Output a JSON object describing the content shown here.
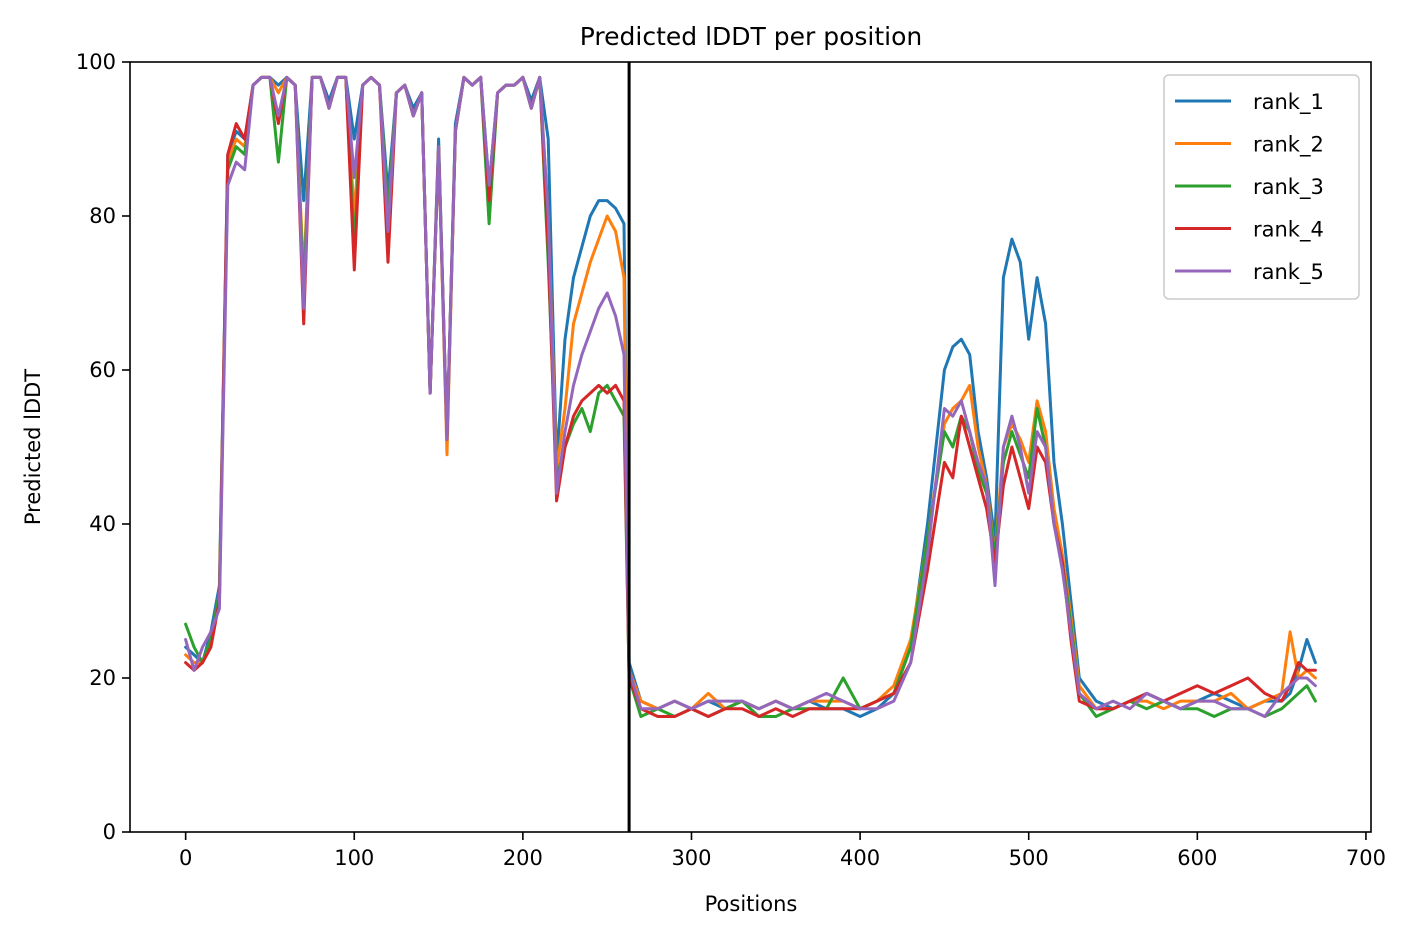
{
  "chart_data": {
    "type": "line",
    "title": "Predicted lDDT per position",
    "xlabel": "Positions",
    "ylabel": "Predicted lDDT",
    "xlim": [
      -33,
      703
    ],
    "ylim": [
      0,
      100
    ],
    "xticks": [
      0,
      100,
      200,
      300,
      400,
      500,
      600,
      700
    ],
    "yticks": [
      0,
      20,
      40,
      60,
      80,
      100
    ],
    "grid": false,
    "legend": "top-right",
    "vertical_line": {
      "x": 263,
      "color": "#000000"
    },
    "series": [
      {
        "name": "rank_1",
        "color": "#1f77b4",
        "x": [
          0,
          5,
          10,
          15,
          20,
          25,
          30,
          35,
          40,
          45,
          50,
          55,
          60,
          65,
          70,
          75,
          80,
          85,
          90,
          95,
          100,
          105,
          110,
          115,
          120,
          125,
          130,
          135,
          140,
          145,
          150,
          155,
          160,
          165,
          170,
          175,
          180,
          185,
          190,
          195,
          200,
          205,
          210,
          215,
          220,
          225,
          230,
          235,
          240,
          245,
          250,
          255,
          260,
          263,
          270,
          280,
          290,
          300,
          310,
          320,
          330,
          340,
          350,
          360,
          370,
          380,
          390,
          400,
          410,
          420,
          430,
          440,
          450,
          455,
          460,
          465,
          470,
          475,
          480,
          485,
          490,
          495,
          500,
          505,
          510,
          515,
          520,
          525,
          530,
          540,
          550,
          560,
          570,
          580,
          590,
          600,
          610,
          620,
          630,
          640,
          650,
          655,
          660,
          665,
          670
        ],
        "values": [
          24,
          23,
          22,
          26,
          32,
          88,
          91,
          90,
          97,
          98,
          98,
          97,
          98,
          97,
          82,
          98,
          98,
          95,
          98,
          98,
          90,
          97,
          98,
          97,
          83,
          96,
          97,
          94,
          96,
          57,
          90,
          51,
          92,
          98,
          97,
          98,
          84,
          96,
          97,
          97,
          98,
          95,
          98,
          90,
          48,
          64,
          72,
          76,
          80,
          82,
          82,
          81,
          79,
          22,
          17,
          16,
          17,
          16,
          17,
          16,
          17,
          16,
          17,
          16,
          17,
          16,
          16,
          15,
          16,
          18,
          24,
          40,
          60,
          63,
          64,
          62,
          52,
          46,
          38,
          72,
          77,
          74,
          64,
          72,
          66,
          48,
          40,
          30,
          20,
          17,
          16,
          17,
          18,
          17,
          16,
          17,
          18,
          17,
          16,
          17,
          17,
          18,
          21,
          25,
          22
        ]
      },
      {
        "name": "rank_2",
        "color": "#ff7f0e",
        "x": [
          0,
          5,
          10,
          15,
          20,
          25,
          30,
          35,
          40,
          45,
          50,
          55,
          60,
          65,
          70,
          75,
          80,
          85,
          90,
          95,
          100,
          105,
          110,
          115,
          120,
          125,
          130,
          135,
          140,
          145,
          150,
          155,
          160,
          165,
          170,
          175,
          180,
          185,
          190,
          195,
          200,
          205,
          210,
          215,
          220,
          225,
          230,
          235,
          240,
          245,
          250,
          255,
          260,
          263,
          270,
          280,
          290,
          300,
          310,
          320,
          330,
          340,
          350,
          360,
          370,
          380,
          390,
          400,
          410,
          420,
          430,
          440,
          450,
          455,
          460,
          465,
          470,
          475,
          480,
          485,
          490,
          495,
          500,
          505,
          510,
          515,
          520,
          525,
          530,
          540,
          550,
          560,
          570,
          580,
          590,
          600,
          610,
          620,
          630,
          640,
          650,
          655,
          660,
          665,
          670
        ],
        "values": [
          23,
          22,
          22,
          25,
          31,
          87,
          90,
          89,
          97,
          98,
          98,
          96,
          98,
          97,
          72,
          98,
          98,
          94,
          98,
          98,
          80,
          97,
          98,
          97,
          80,
          96,
          97,
          93,
          96,
          57,
          89,
          49,
          91,
          98,
          97,
          98,
          82,
          96,
          97,
          97,
          98,
          94,
          98,
          80,
          47,
          55,
          66,
          70,
          74,
          77,
          80,
          78,
          72,
          21,
          17,
          16,
          17,
          16,
          18,
          16,
          17,
          16,
          17,
          16,
          17,
          17,
          17,
          16,
          17,
          19,
          25,
          38,
          53,
          55,
          56,
          58,
          50,
          45,
          36,
          50,
          53,
          51,
          48,
          56,
          52,
          42,
          36,
          28,
          19,
          16,
          16,
          17,
          17,
          16,
          17,
          17,
          17,
          18,
          16,
          17,
          18,
          26,
          20,
          21,
          20
        ]
      },
      {
        "name": "rank_3",
        "color": "#2ca02c",
        "x": [
          0,
          5,
          10,
          15,
          20,
          25,
          30,
          35,
          40,
          45,
          50,
          55,
          60,
          65,
          70,
          75,
          80,
          85,
          90,
          95,
          100,
          105,
          110,
          115,
          120,
          125,
          130,
          135,
          140,
          145,
          150,
          155,
          160,
          165,
          170,
          175,
          180,
          185,
          190,
          195,
          200,
          205,
          210,
          215,
          220,
          225,
          230,
          235,
          240,
          245,
          250,
          255,
          260,
          263,
          270,
          280,
          290,
          300,
          310,
          320,
          330,
          340,
          350,
          360,
          370,
          380,
          390,
          400,
          410,
          420,
          430,
          440,
          450,
          455,
          460,
          465,
          470,
          475,
          480,
          485,
          490,
          495,
          500,
          505,
          510,
          515,
          520,
          525,
          530,
          540,
          550,
          560,
          570,
          580,
          590,
          600,
          610,
          620,
          630,
          640,
          650,
          655,
          660,
          665,
          670
        ],
        "values": [
          27,
          24,
          22,
          25,
          31,
          86,
          89,
          88,
          97,
          98,
          98,
          87,
          98,
          97,
          70,
          98,
          98,
          94,
          98,
          98,
          76,
          97,
          98,
          97,
          80,
          96,
          97,
          93,
          96,
          57,
          89,
          51,
          91,
          98,
          97,
          98,
          79,
          96,
          97,
          97,
          98,
          94,
          98,
          74,
          46,
          50,
          53,
          55,
          52,
          57,
          58,
          56,
          54,
          20,
          15,
          16,
          15,
          16,
          15,
          16,
          17,
          15,
          15,
          16,
          16,
          16,
          20,
          16,
          17,
          18,
          24,
          38,
          52,
          50,
          54,
          52,
          47,
          44,
          36,
          48,
          52,
          49,
          46,
          55,
          50,
          40,
          35,
          27,
          18,
          15,
          16,
          17,
          16,
          17,
          16,
          16,
          15,
          16,
          16,
          15,
          16,
          17,
          18,
          19,
          17
        ]
      },
      {
        "name": "rank_4",
        "color": "#d62728",
        "x": [
          0,
          5,
          10,
          15,
          20,
          25,
          30,
          35,
          40,
          45,
          50,
          55,
          60,
          65,
          70,
          75,
          80,
          85,
          90,
          95,
          100,
          105,
          110,
          115,
          120,
          125,
          130,
          135,
          140,
          145,
          150,
          155,
          160,
          165,
          170,
          175,
          180,
          185,
          190,
          195,
          200,
          205,
          210,
          215,
          220,
          225,
          230,
          235,
          240,
          245,
          250,
          255,
          260,
          263,
          270,
          280,
          290,
          300,
          310,
          320,
          330,
          340,
          350,
          360,
          370,
          380,
          390,
          400,
          410,
          420,
          430,
          440,
          450,
          455,
          460,
          465,
          470,
          475,
          480,
          485,
          490,
          495,
          500,
          505,
          510,
          515,
          520,
          525,
          530,
          540,
          550,
          560,
          570,
          580,
          590,
          600,
          610,
          620,
          630,
          640,
          650,
          655,
          660,
          665,
          670
        ],
        "values": [
          22,
          21,
          22,
          24,
          30,
          88,
          92,
          90,
          97,
          98,
          98,
          92,
          98,
          97,
          66,
          98,
          98,
          94,
          98,
          98,
          73,
          97,
          98,
          97,
          74,
          96,
          97,
          93,
          96,
          57,
          89,
          51,
          91,
          98,
          97,
          98,
          82,
          96,
          97,
          97,
          98,
          94,
          98,
          76,
          43,
          50,
          54,
          56,
          57,
          58,
          57,
          58,
          56,
          20,
          16,
          15,
          15,
          16,
          15,
          16,
          16,
          15,
          16,
          15,
          16,
          16,
          16,
          16,
          17,
          18,
          22,
          34,
          48,
          46,
          54,
          50,
          46,
          42,
          35,
          45,
          50,
          46,
          42,
          50,
          48,
          40,
          35,
          25,
          17,
          16,
          16,
          17,
          18,
          17,
          18,
          19,
          18,
          19,
          20,
          18,
          17,
          19,
          22,
          21,
          21
        ]
      },
      {
        "name": "rank_5",
        "color": "#9467bd",
        "x": [
          0,
          5,
          10,
          15,
          20,
          25,
          30,
          35,
          40,
          45,
          50,
          55,
          60,
          65,
          70,
          75,
          80,
          85,
          90,
          95,
          100,
          105,
          110,
          115,
          120,
          125,
          130,
          135,
          140,
          145,
          150,
          155,
          160,
          165,
          170,
          175,
          180,
          185,
          190,
          195,
          200,
          205,
          210,
          215,
          220,
          225,
          230,
          235,
          240,
          245,
          250,
          255,
          260,
          263,
          270,
          280,
          290,
          300,
          310,
          320,
          330,
          340,
          350,
          360,
          370,
          380,
          390,
          400,
          410,
          420,
          430,
          440,
          450,
          455,
          460,
          465,
          470,
          475,
          480,
          485,
          490,
          495,
          500,
          505,
          510,
          515,
          520,
          525,
          530,
          540,
          550,
          560,
          570,
          580,
          590,
          600,
          610,
          620,
          630,
          640,
          650,
          655,
          660,
          665,
          670
        ],
        "values": [
          25,
          21,
          24,
          26,
          29,
          84,
          87,
          86,
          97,
          98,
          98,
          93,
          98,
          97,
          68,
          98,
          98,
          94,
          98,
          98,
          85,
          97,
          98,
          97,
          78,
          96,
          97,
          93,
          96,
          57,
          89,
          51,
          91,
          98,
          97,
          98,
          84,
          96,
          97,
          97,
          98,
          94,
          98,
          80,
          44,
          52,
          58,
          62,
          65,
          68,
          70,
          67,
          62,
          21,
          16,
          16,
          17,
          16,
          17,
          17,
          17,
          16,
          17,
          16,
          17,
          18,
          17,
          16,
          16,
          17,
          22,
          36,
          55,
          54,
          56,
          52,
          48,
          45,
          32,
          50,
          54,
          50,
          44,
          52,
          50,
          40,
          34,
          26,
          18,
          16,
          17,
          16,
          18,
          17,
          16,
          17,
          17,
          16,
          16,
          15,
          18,
          19,
          20,
          20,
          19
        ]
      }
    ]
  }
}
